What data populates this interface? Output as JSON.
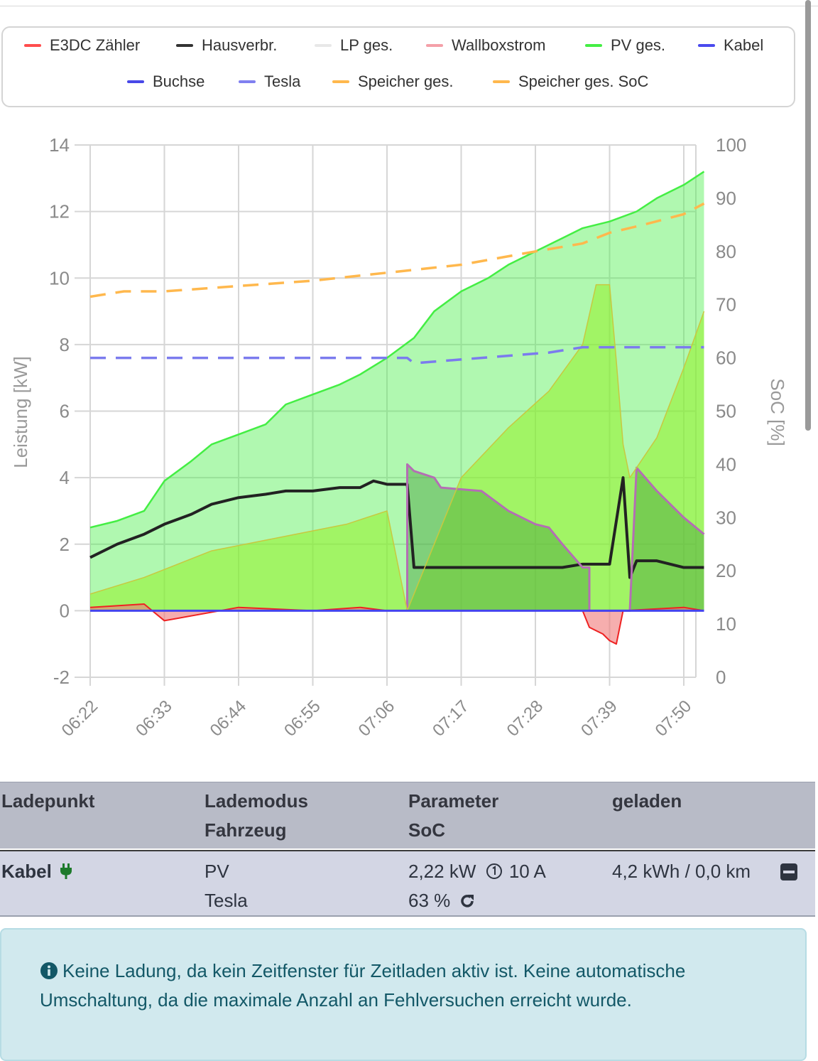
{
  "legend": {
    "items": [
      {
        "label": "E3DC Zähler",
        "color": "#ff4d4d",
        "style": "solid"
      },
      {
        "label": "Hausverbr.",
        "color": "#333333",
        "style": "solid"
      },
      {
        "label": "LP ges.",
        "color": "#e8e8e8",
        "style": "solid"
      },
      {
        "label": "Wallboxstrom",
        "color": "#f4a0a8",
        "style": "solid"
      },
      {
        "label": "PV ges.",
        "color": "#44ee44",
        "style": "solid"
      },
      {
        "label": "Kabel",
        "color": "#4a4aee",
        "style": "solid"
      },
      {
        "label": "Buchse",
        "color": "#4848e8",
        "style": "solid"
      },
      {
        "label": "Tesla",
        "color": "#8080f0",
        "style": "solid"
      },
      {
        "label": "Speicher ges.",
        "color": "#ffb84d",
        "style": "solid"
      },
      {
        "label": "Speicher ges. SoC",
        "color": "#ffb84d",
        "style": "dashed"
      }
    ]
  },
  "chart_data": {
    "type": "line",
    "ylabel_left": "Leistung [kW]",
    "ylabel_right": "SoC [%]",
    "ylim_left": [
      -2,
      14
    ],
    "ylim_right": [
      0,
      100
    ],
    "yticks_left": [
      "-2",
      "0",
      "2",
      "4",
      "6",
      "8",
      "10",
      "12",
      "14"
    ],
    "yticks_right": [
      "0",
      "10",
      "20",
      "30",
      "40",
      "50",
      "60",
      "70",
      "80",
      "90",
      "100"
    ],
    "xticks": [
      "06:22",
      "06:33",
      "06:44",
      "06:55",
      "07:06",
      "07:17",
      "07:28",
      "07:39",
      "07:50"
    ],
    "grid": true,
    "series": [
      {
        "name": "PV ges.",
        "axis": "left",
        "color": "#44ee44",
        "fill": true,
        "x": [
          "06:22",
          "06:26",
          "06:30",
          "06:33",
          "06:37",
          "06:40",
          "06:44",
          "06:48",
          "06:51",
          "06:55",
          "06:59",
          "07:02",
          "07:06",
          "07:10",
          "07:13",
          "07:17",
          "07:21",
          "07:24",
          "07:28",
          "07:32",
          "07:35",
          "07:39",
          "07:43",
          "07:46",
          "07:50",
          "07:53"
        ],
        "values": [
          2.5,
          2.7,
          3.0,
          3.9,
          4.5,
          5.0,
          5.3,
          5.6,
          6.2,
          6.5,
          6.8,
          7.1,
          7.6,
          8.2,
          9.0,
          9.6,
          10.0,
          10.4,
          10.8,
          11.2,
          11.5,
          11.7,
          12.0,
          12.4,
          12.8,
          13.2
        ]
      },
      {
        "name": "Hausverbr.",
        "axis": "left",
        "color": "#222222",
        "x": [
          "06:22",
          "06:26",
          "06:30",
          "06:33",
          "06:37",
          "06:40",
          "06:44",
          "06:48",
          "06:51",
          "06:55",
          "06:59",
          "07:02",
          "07:04",
          "07:06",
          "07:08",
          "07:09",
          "07:10",
          "07:13",
          "07:17",
          "07:21",
          "07:24",
          "07:28",
          "07:32",
          "07:35",
          "07:39",
          "07:41",
          "07:42",
          "07:43",
          "07:46",
          "07:50",
          "07:53"
        ],
        "values": [
          1.6,
          2.0,
          2.3,
          2.6,
          2.9,
          3.2,
          3.4,
          3.5,
          3.6,
          3.6,
          3.7,
          3.7,
          3.9,
          3.8,
          3.8,
          3.8,
          1.3,
          1.3,
          1.3,
          1.3,
          1.3,
          1.3,
          1.3,
          1.4,
          1.4,
          4.0,
          1.0,
          1.5,
          1.5,
          1.3,
          1.3
        ]
      },
      {
        "name": "Wallboxstrom",
        "axis": "left",
        "color": "#f4a0a8",
        "x": [
          "07:09",
          "07:09",
          "07:10",
          "07:13",
          "07:14",
          "07:20",
          "07:24",
          "07:28",
          "07:30",
          "07:32",
          "07:35",
          "07:36",
          "07:36",
          "07:42",
          "07:43",
          "07:46",
          "07:50",
          "07:53"
        ],
        "values": [
          0,
          4.4,
          4.2,
          4.0,
          3.7,
          3.6,
          3.0,
          2.6,
          2.5,
          2.0,
          1.3,
          1.3,
          0,
          0,
          4.3,
          3.6,
          2.8,
          2.3
        ]
      },
      {
        "name": "E3DC Zähler",
        "axis": "left",
        "color": "#ee2222",
        "x": [
          "06:22",
          "06:30",
          "06:33",
          "06:44",
          "06:55",
          "07:02",
          "07:06",
          "07:17",
          "07:28",
          "07:35",
          "07:36",
          "07:38",
          "07:39",
          "07:40",
          "07:41",
          "07:50",
          "07:53"
        ],
        "values": [
          0.1,
          0.2,
          -0.3,
          0.1,
          0.0,
          0.1,
          0.0,
          0.0,
          0.0,
          0.0,
          -0.5,
          -0.7,
          -0.9,
          -1.0,
          0.0,
          0.1,
          0.0
        ]
      },
      {
        "name": "Speicher ges.",
        "axis": "left",
        "color": "#c8c840",
        "x": [
          "06:22",
          "06:30",
          "06:40",
          "06:50",
          "07:00",
          "07:06",
          "07:09",
          "07:17",
          "07:24",
          "07:30",
          "07:35",
          "07:37",
          "07:39",
          "07:40",
          "07:41",
          "07:42",
          "07:46",
          "07:50",
          "07:53"
        ],
        "values": [
          0.5,
          1.0,
          1.8,
          2.2,
          2.6,
          3.0,
          0.0,
          4.0,
          5.5,
          6.6,
          8.0,
          9.8,
          9.8,
          7.5,
          5.0,
          4.0,
          5.2,
          7.3,
          9.0
        ]
      },
      {
        "name": "Speicher ges. SoC",
        "axis": "right",
        "color": "#ffb84d",
        "dashed": true,
        "x": [
          "06:22",
          "06:27",
          "06:33",
          "06:44",
          "06:55",
          "07:06",
          "07:17",
          "07:28",
          "07:35",
          "07:39",
          "07:44",
          "07:50",
          "07:53"
        ],
        "values": [
          71.5,
          72.5,
          72.5,
          73.5,
          74.5,
          76,
          77.5,
          80,
          81.5,
          83.5,
          85,
          87,
          89
        ]
      },
      {
        "name": "Tesla",
        "axis": "right",
        "color": "#7b7bee",
        "dashed": true,
        "x": [
          "06:22",
          "07:09",
          "07:10",
          "07:20",
          "07:30",
          "07:35",
          "07:50",
          "07:53"
        ],
        "values": [
          60,
          60,
          59,
          60,
          61,
          62,
          62,
          62
        ]
      },
      {
        "name": "Kabel",
        "axis": "left",
        "color": "#4444ee",
        "x": [
          "06:22",
          "07:53"
        ],
        "values": [
          0,
          0
        ]
      }
    ]
  },
  "table": {
    "headers": {
      "col1": "Ladepunkt",
      "col2a": "Lademodus",
      "col2b": "Fahrzeug",
      "col3a": "Parameter",
      "col3b": "SoC",
      "col4": "geladen"
    },
    "row": {
      "ladepunkt": "Kabel",
      "plug_icon": "plug-icon",
      "lademodus": "PV",
      "fahrzeug": "Tesla",
      "leistung": "2,22 kW",
      "strom": "10 A",
      "soc": "63 %",
      "geladen": "4,2 kWh / 0,0 km"
    }
  },
  "alert": {
    "icon": "info-icon",
    "text": "Keine Ladung, da kein Zeitfenster für Zeitladen aktiv ist. Keine automatische Umschaltung, da die maximale Anzahl an Fehlversuchen erreicht wurde."
  }
}
